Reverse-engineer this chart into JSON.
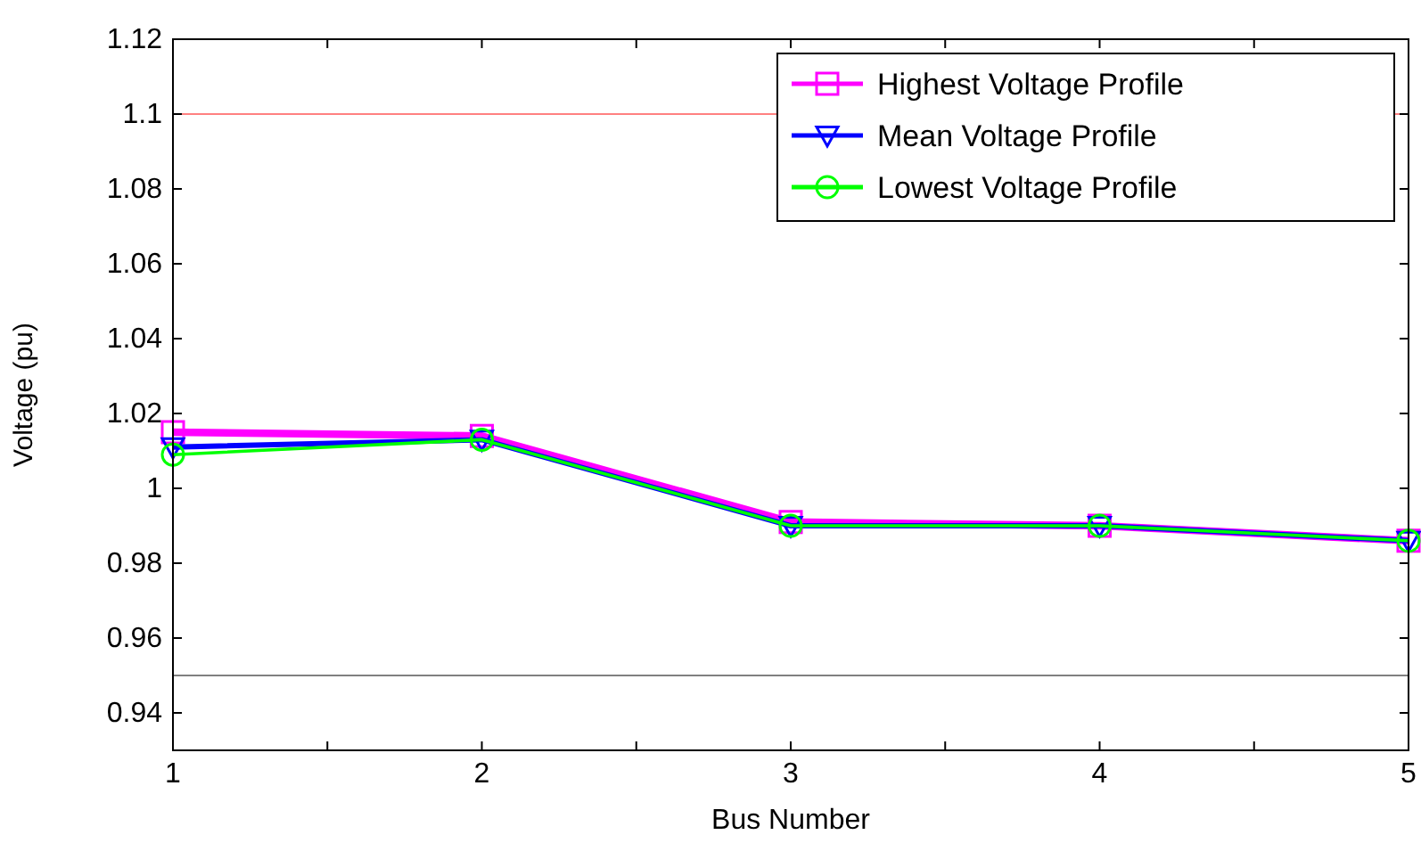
{
  "chart_data": {
    "type": "line",
    "xlabel": "Bus Number",
    "ylabel": "Voltage (pu)",
    "x": [
      1,
      2,
      3,
      4,
      5
    ],
    "series": [
      {
        "name": "Highest Voltage Profile",
        "color": "#ff00ff",
        "marker": "square",
        "values": [
          1.015,
          1.014,
          0.991,
          0.99,
          0.986
        ]
      },
      {
        "name": "Mean Voltage Profile",
        "color": "#0000ff",
        "marker": "triangle",
        "values": [
          1.011,
          1.013,
          0.99,
          0.99,
          0.986
        ]
      },
      {
        "name": "Lowest Voltage Profile",
        "color": "#00ff00",
        "marker": "circle",
        "values": [
          1.009,
          1.013,
          0.99,
          0.99,
          0.986
        ]
      }
    ],
    "xlim": [
      1,
      5
    ],
    "xticks": [
      1,
      {
        "value": 1.5,
        "label": null
      },
      2,
      {
        "value": 2.5,
        "label": null
      },
      3,
      {
        "value": 3.5,
        "label": null
      },
      4,
      {
        "value": 4.5,
        "label": null
      },
      5
    ],
    "ylim": [
      0.93,
      1.12
    ],
    "yticks": [
      0.94,
      0.96,
      0.98,
      1,
      1.02,
      1.04,
      1.06,
      1.08,
      1.1,
      1.12
    ],
    "ref_lines": [
      {
        "axis": "y",
        "value": 1.1,
        "color": "#ff8080"
      },
      {
        "axis": "y",
        "value": 0.95,
        "color": "#808080"
      }
    ],
    "legend": "top right",
    "grid": false
  }
}
